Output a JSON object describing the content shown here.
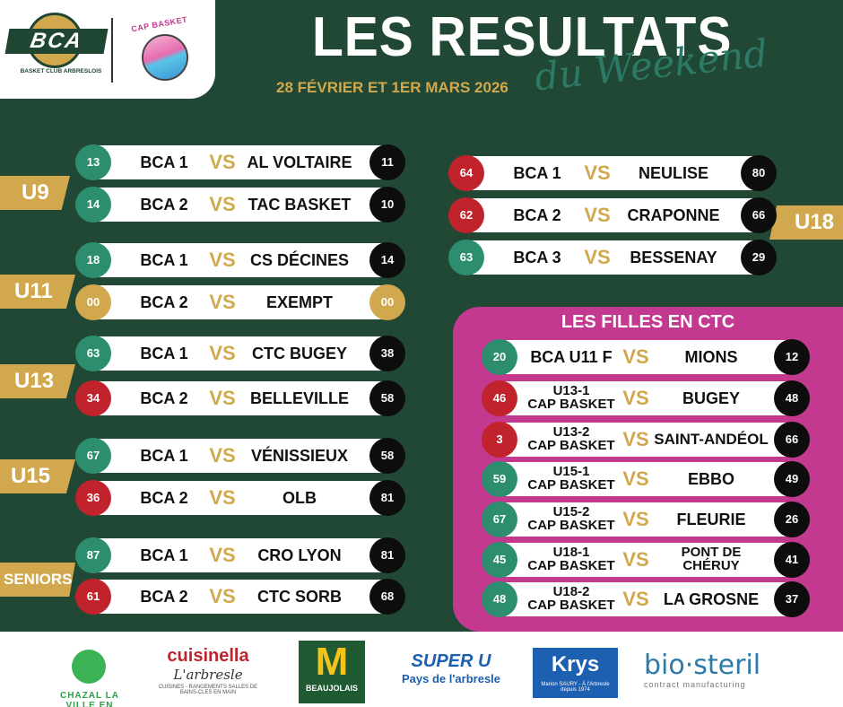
{
  "header": {
    "title": "LES RESULTATS",
    "subtitle": "du Weekend",
    "date": "28 FÉVRIER ET 1ER MARS 2026",
    "club_logo_text": "BCA",
    "club_logo_sub": "BASKET CLUB ARBRESLOIS",
    "partner_logo_text": "CAP BASKET"
  },
  "vs_label": "VS",
  "left_matches": [
    {
      "category": "U9",
      "games": [
        {
          "home_score": "13",
          "home": "BCA 1",
          "away": "AL VOLTAIRE",
          "away_score": "11"
        },
        {
          "home_score": "14",
          "home": "BCA 2",
          "away": "TAC BASKET",
          "away_score": "10"
        }
      ]
    },
    {
      "category": "U11",
      "games": [
        {
          "home_score": "18",
          "home": "BCA 1",
          "away": "CS DÉCINES",
          "away_score": "14"
        },
        {
          "home_score": "00",
          "home": "BCA 2",
          "away": "EXEMPT",
          "away_score": "00"
        }
      ]
    },
    {
      "category": "U13",
      "games": [
        {
          "home_score": "63",
          "home": "BCA 1",
          "away": "CTC BUGEY",
          "away_score": "38"
        },
        {
          "home_score": "34",
          "home": "BCA 2",
          "away": "BELLEVILLE",
          "away_score": "58"
        }
      ]
    },
    {
      "category": "U15",
      "games": [
        {
          "home_score": "67",
          "home": "BCA 1",
          "away": "VÉNISSIEUX",
          "away_score": "58"
        },
        {
          "home_score": "36",
          "home": "BCA 2",
          "away": "OLB",
          "away_score": "81"
        }
      ]
    },
    {
      "category": "SENIORS",
      "games": [
        {
          "home_score": "87",
          "home": "BCA 1",
          "away": "CRO LYON",
          "away_score": "81"
        },
        {
          "home_score": "61",
          "home": "BCA 2",
          "away": "CTC SORB",
          "away_score": "68"
        }
      ]
    }
  ],
  "u18": {
    "category": "U18",
    "games": [
      {
        "home_score": "64",
        "home": "BCA 1",
        "away": "NEULISE",
        "away_score": "80"
      },
      {
        "home_score": "62",
        "home": "BCA 2",
        "away": "CRAPONNE",
        "away_score": "66"
      },
      {
        "home_score": "63",
        "home": "BCA 3",
        "away": "BESSENAY",
        "away_score": "29"
      }
    ]
  },
  "ctc": {
    "title": "LES FILLES EN CTC",
    "games": [
      {
        "home_score": "20",
        "home_1": "BCA U11 F",
        "home_2": "",
        "away": "MIONS",
        "away_2": "",
        "away_score": "12"
      },
      {
        "home_score": "46",
        "home_1": "U13-1",
        "home_2": "CAP BASKET",
        "away": "BUGEY",
        "away_2": "",
        "away_score": "48"
      },
      {
        "home_score": "3",
        "home_1": "U13-2",
        "home_2": "CAP BASKET",
        "away": "SAINT-ANDÉOL",
        "away_2": "",
        "away_score": "66"
      },
      {
        "home_score": "59",
        "home_1": "U15-1",
        "home_2": "CAP BASKET",
        "away": "EBBO",
        "away_2": "",
        "away_score": "49"
      },
      {
        "home_score": "67",
        "home_1": "U15-2",
        "home_2": "CAP BASKET",
        "away": "FLEURIE",
        "away_2": "",
        "away_score": "26"
      },
      {
        "home_score": "45",
        "home_1": "U18-1",
        "home_2": "CAP BASKET",
        "away": "PONT DE",
        "away_2": "CHÉRUY",
        "away_score": "41"
      },
      {
        "home_score": "48",
        "home_1": "U18-2",
        "home_2": "CAP BASKET",
        "away": "LA GROSNE",
        "away_2": "",
        "away_score": "37"
      }
    ]
  },
  "sponsors": {
    "chazal": "CHAZAL LA VILLE EN VERT",
    "cuisinella": "cuisinella",
    "cuisinella_town": "L'arbresle",
    "cuisinella_tag": "CUISINES - RANGEMENTS SALLES DE BAINS-CLES EN MAIN",
    "mcdonalds_sub": "BEAUJOLAIS",
    "superu": "SUPER U",
    "superu_sub": "Pays de l'arbresle",
    "krys": "Krys",
    "krys_sub": "Marion SAURY - À l'Arbresle depuis 1974",
    "biosteril": "bio·steril",
    "biosteril_sub": "contract manufacturing"
  },
  "colors": {
    "background": "#214735",
    "gold": "#d1a84d",
    "green_score": "#2c8e6f",
    "red_score": "#c0232b",
    "black_score": "#0d0d0d",
    "ctc_panel": "#c2398f"
  }
}
